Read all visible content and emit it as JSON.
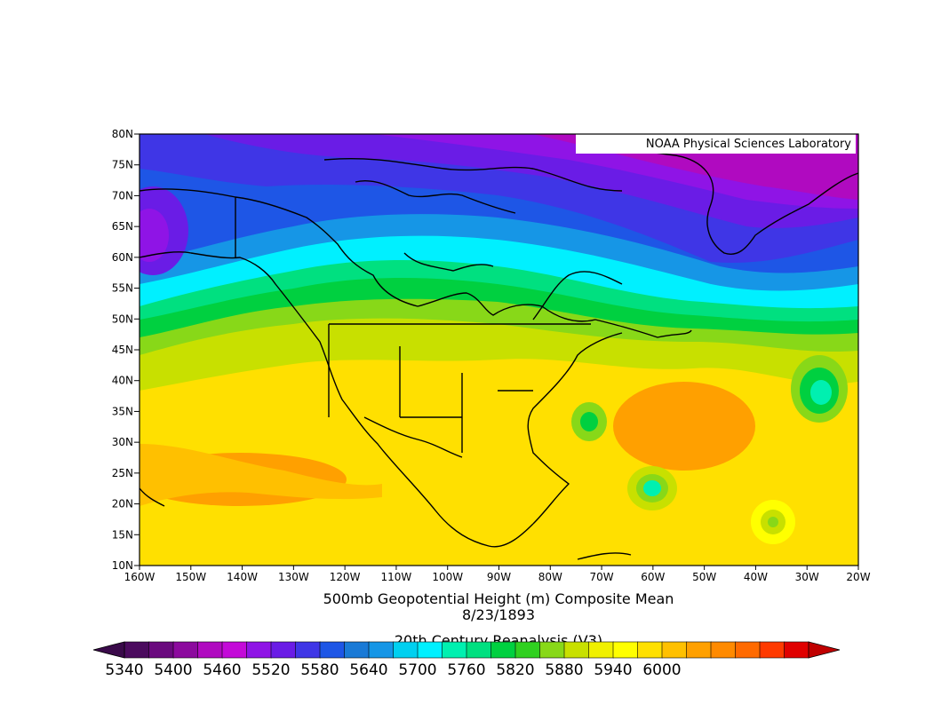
{
  "map": {
    "credit": "NOAA Physical Sciences Laboratory",
    "title_line1": "500mb Geopotential Height (m) Composite Mean",
    "title_line2": "8/23/1893",
    "title_line3": "20th Century Reanalysis (V3)",
    "lat_labels": [
      "80N",
      "75N",
      "70N",
      "65N",
      "60N",
      "55N",
      "50N",
      "45N",
      "40N",
      "35N",
      "30N",
      "25N",
      "20N",
      "15N",
      "10N"
    ],
    "lon_labels": [
      "160W",
      "150W",
      "140W",
      "130W",
      "120W",
      "110W",
      "100W",
      "90W",
      "80W",
      "70W",
      "60W",
      "50W",
      "40W",
      "30W",
      "20W"
    ]
  },
  "colorbar": {
    "min": 5340,
    "max": 6000,
    "step": 30,
    "tick_labels": [
      "5340",
      "5400",
      "5460",
      "5520",
      "5580",
      "5640",
      "5700",
      "5760",
      "5820",
      "5880",
      "5940",
      "6000"
    ],
    "colors": [
      "#4b0b5e",
      "#6a0a7e",
      "#8c0a9e",
      "#b00ac0",
      "#c30ad8",
      "#8f14e6",
      "#6a1ce6",
      "#3f36e6",
      "#1e56e6",
      "#1a7ad6",
      "#1696e6",
      "#00d0f0",
      "#00f0ff",
      "#00f0b0",
      "#00e080",
      "#00d040",
      "#30d020",
      "#88d818",
      "#c8e000",
      "#f0f000",
      "#ffff00",
      "#ffe000",
      "#ffc000",
      "#ffa000",
      "#ff8a00",
      "#ff6a00",
      "#ff3a00",
      "#e00000"
    ]
  }
}
